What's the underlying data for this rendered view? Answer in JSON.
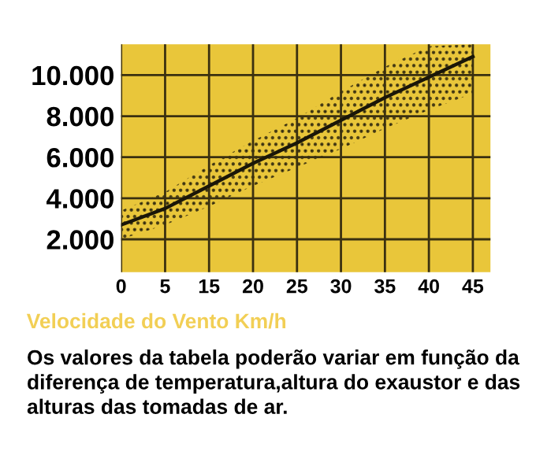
{
  "chart_data": {
    "type": "line",
    "xlabel": "Velocidade do Vento Km/h",
    "annotations": [
      "Os valores da tabela poderão variar em função da diferença de temperatura,altura do exaustor e das alturas das tomadas de ar."
    ],
    "categories": [
      "0",
      "5",
      "15",
      "20",
      "25",
      "30",
      "35",
      "40",
      "45"
    ],
    "series": [
      {
        "color": "#1a1608",
        "values": [
          2700,
          3500,
          4600,
          5700,
          6700,
          7800,
          8900,
          9900,
          10900
        ],
        "lower": [
          2000,
          2700,
          3600,
          4600,
          5500,
          6400,
          7400,
          8300,
          9100
        ],
        "upper": [
          3400,
          4300,
          5600,
          6800,
          7900,
          9200,
          10400,
          11400,
          11500
        ]
      }
    ],
    "ylim": [
      400,
      11500
    ],
    "yticks": [
      {
        "value": 2000,
        "label": "2.000"
      },
      {
        "value": 4000,
        "label": "4.000"
      },
      {
        "value": 6000,
        "label": "6.000"
      },
      {
        "value": 8000,
        "label": "8.000"
      },
      {
        "value": 10000,
        "label": "10.000"
      }
    ],
    "grid": true,
    "marker": "none",
    "line_style": "solid"
  }
}
